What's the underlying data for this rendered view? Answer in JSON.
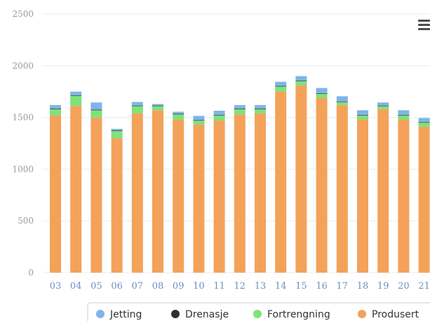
{
  "chart_data": {
    "type": "bar",
    "stacked": true,
    "categories": [
      "03",
      "04",
      "05",
      "06",
      "07",
      "08",
      "09",
      "10",
      "11",
      "12",
      "13",
      "14",
      "15",
      "16",
      "17",
      "18",
      "19",
      "20",
      "21"
    ],
    "series": [
      {
        "name": "Produsert",
        "color": "#f4a25a",
        "values": [
          1520,
          1610,
          1500,
          1300,
          1540,
          1570,
          1480,
          1430,
          1470,
          1530,
          1540,
          1750,
          1810,
          1690,
          1620,
          1480,
          1580,
          1480,
          1410
        ]
      },
      {
        "name": "Fortrengning",
        "color": "#7ee27a",
        "values": [
          60,
          100,
          70,
          70,
          70,
          40,
          50,
          40,
          50,
          50,
          40,
          50,
          40,
          40,
          30,
          40,
          30,
          40,
          40
        ]
      },
      {
        "name": "Drenasje",
        "color": "#2f2f2f",
        "values": [
          5,
          5,
          5,
          5,
          5,
          5,
          5,
          5,
          5,
          5,
          5,
          5,
          5,
          5,
          5,
          5,
          5,
          5,
          5
        ]
      },
      {
        "name": "Jetting",
        "color": "#7fb5e8",
        "values": [
          35,
          35,
          70,
          15,
          35,
          15,
          20,
          40,
          40,
          35,
          35,
          40,
          45,
          50,
          50,
          45,
          30,
          45,
          40
        ]
      }
    ],
    "yticks": [
      "2500",
      "2000",
      "1500",
      "1000",
      "500",
      "0"
    ],
    "ylim": [
      0,
      2500
    ],
    "grid": true,
    "legend_position": "bottom"
  },
  "icons": {
    "menu": "hamburger-menu-icon"
  }
}
